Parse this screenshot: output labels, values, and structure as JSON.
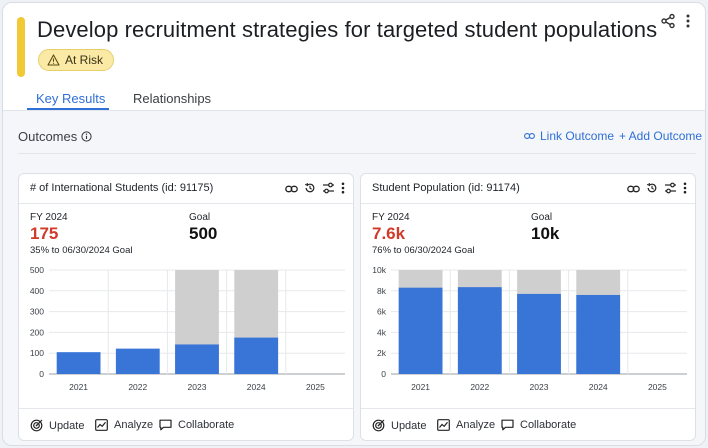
{
  "header": {
    "title": "Develop recruitment strategies for targeted student populations",
    "status_badge": "At Risk",
    "status_color": "#fbeaa6",
    "accent_color": "#f2c935",
    "icons": [
      "share-icon",
      "more-vertical-icon"
    ]
  },
  "tabs": [
    {
      "label": "Key Results",
      "active": true
    },
    {
      "label": "Relationships",
      "active": false
    }
  ],
  "outcomes": {
    "title": "Outcomes",
    "info_icon": "info-icon",
    "link_label": "Link Outcome",
    "add_label": "+ Add Outcome"
  },
  "cards": [
    {
      "title": "# of International Students (id: 91175)",
      "fy_label": "FY 2024",
      "fy_value": "175",
      "progress_text": "35% to 06/30/2024 Goal",
      "goal_label": "Goal",
      "goal_value": "500",
      "footer": {
        "update": "Update",
        "analyze": "Analyze",
        "collaborate": "Collaborate"
      },
      "chart_data": {
        "type": "bar",
        "categories": [
          "2021",
          "2022",
          "2023",
          "2024",
          "2025"
        ],
        "series": [
          {
            "values": [
              105,
              122,
              142,
              175,
              null
            ],
            "color": "#3875d7"
          },
          {
            "values": [
              null,
              null,
              500,
              500,
              null
            ],
            "color": "#cfcfcf"
          }
        ],
        "ylim": [
          0,
          500
        ],
        "yticks": [
          0,
          100,
          200,
          300,
          400,
          500
        ],
        "ytick_labels": [
          "0",
          "100",
          "200",
          "300",
          "400",
          "500"
        ],
        "grid": true
      }
    },
    {
      "title": "Student Population (id: 91174)",
      "fy_label": "FY 2024",
      "fy_value": "7.6k",
      "progress_text": "76% to 06/30/2024 Goal",
      "goal_label": "Goal",
      "goal_value": "10k",
      "footer": {
        "update": "Update",
        "analyze": "Analyze",
        "collaborate": "Collaborate"
      },
      "chart_data": {
        "type": "bar",
        "categories": [
          "2021",
          "2022",
          "2023",
          "2024",
          "2025"
        ],
        "series": [
          {
            "values": [
              8300,
              8350,
              7700,
              7600,
              null
            ],
            "color": "#3875d7"
          },
          {
            "values": [
              10000,
              10000,
              10000,
              10000,
              null
            ],
            "color": "#cfcfcf"
          }
        ],
        "ylim": [
          0,
          10000
        ],
        "yticks": [
          0,
          2000,
          4000,
          6000,
          8000,
          10000
        ],
        "ytick_labels": [
          "0",
          "2k",
          "4k",
          "6k",
          "8k",
          "10k"
        ],
        "grid": true
      }
    }
  ]
}
